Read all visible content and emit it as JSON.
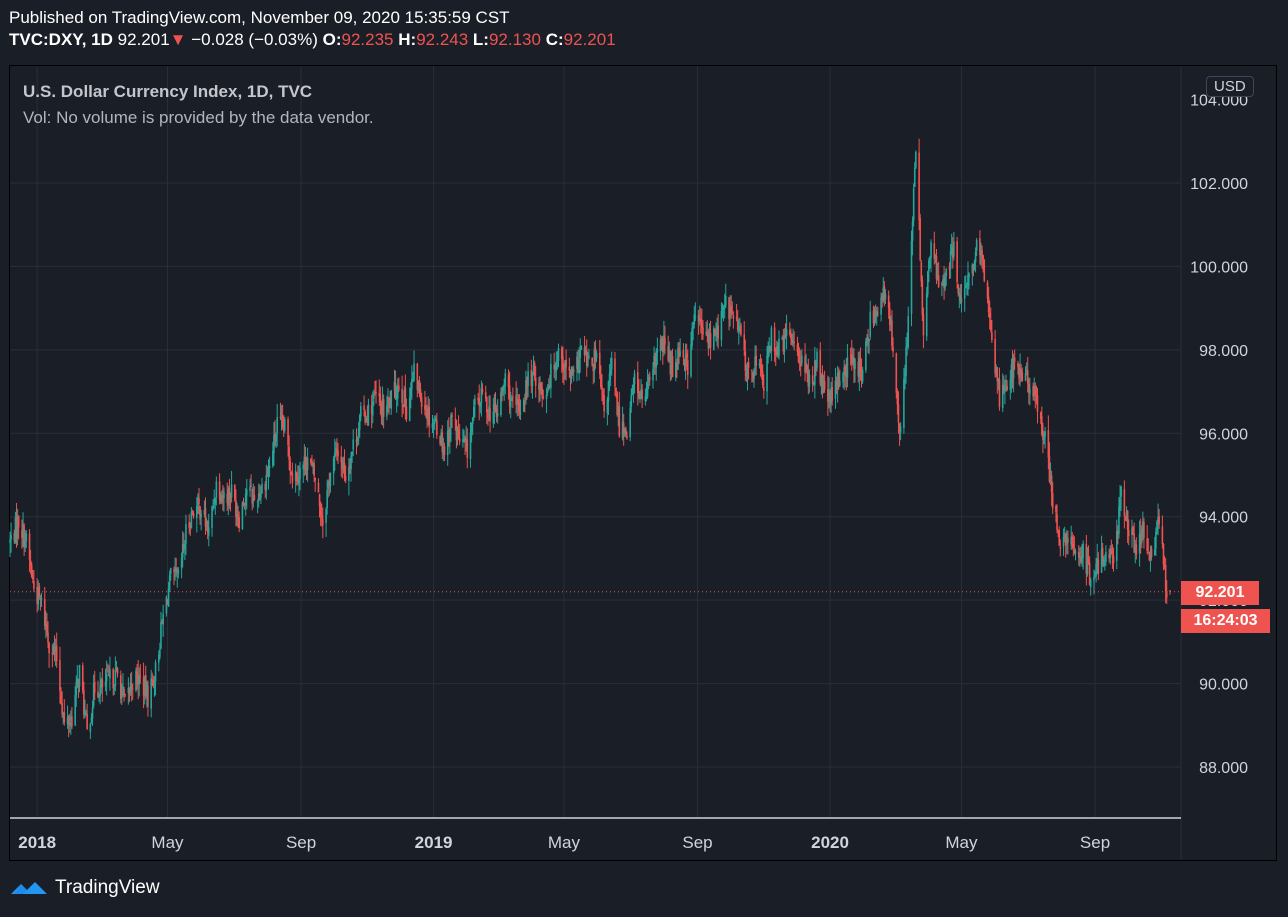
{
  "header": {
    "published": "Published on TradingView.com, November 09, 2020 15:35:59 CST",
    "symbol": "TVC:DXY, 1D",
    "last": "92.201",
    "change": "−0.028 (−0.03%)",
    "o_label": "O:",
    "o_val": "92.235",
    "h_label": "H:",
    "h_val": "92.243",
    "l_label": "L:",
    "l_val": "92.130",
    "c_label": "C:",
    "c_val": "92.201"
  },
  "legend": {
    "title": "U.S. Dollar Currency Index, 1D, TVC",
    "volume_note": "Vol: No volume is provided by the data vendor."
  },
  "currency_button": "USD",
  "price_tag": "92.201",
  "timer_tag": "16:24:03",
  "footer": {
    "brand": "TradingView"
  },
  "colors": {
    "up": "#26a69a",
    "down": "#ef5350",
    "background": "#1a1e27",
    "grid": "#2a2e39",
    "axis_text": "#d1d4dc"
  },
  "chart_data": {
    "type": "candlestick",
    "title": "U.S. Dollar Currency Index, 1D, TVC",
    "ylim": [
      87.0,
      104.0
    ],
    "y_ticks": [
      88,
      90,
      92,
      94,
      96,
      98,
      100,
      102
    ],
    "y_tick_labels": [
      "88.000",
      "90.000",
      "92.000",
      "94.000",
      "96.000",
      "98.000",
      "100.000",
      "102.000"
    ],
    "x_tick_labels": [
      {
        "label": "2018",
        "date": "2018-01-01",
        "bold": true
      },
      {
        "label": "May",
        "date": "2018-05-01",
        "bold": false
      },
      {
        "label": "Sep",
        "date": "2018-09-01",
        "bold": false
      },
      {
        "label": "2019",
        "date": "2019-01-01",
        "bold": true
      },
      {
        "label": "May",
        "date": "2019-05-01",
        "bold": false
      },
      {
        "label": "Sep",
        "date": "2019-09-01",
        "bold": false
      },
      {
        "label": "2020",
        "date": "2020-01-01",
        "bold": true
      },
      {
        "label": "May",
        "date": "2020-05-01",
        "bold": false
      },
      {
        "label": "Sep",
        "date": "2020-09-01",
        "bold": false
      }
    ],
    "x_range": [
      "2017-12-07",
      "2020-11-09"
    ],
    "last_price": 92.201,
    "close_path": [
      [
        "2017-12-07",
        93.4
      ],
      [
        "2017-12-15",
        93.9
      ],
      [
        "2017-12-22",
        93.4
      ],
      [
        "2017-12-29",
        92.3
      ],
      [
        "2018-01-05",
        91.9
      ],
      [
        "2018-01-12",
        91.0
      ],
      [
        "2018-01-19",
        90.6
      ],
      [
        "2018-01-26",
        89.0
      ],
      [
        "2018-02-02",
        89.2
      ],
      [
        "2018-02-09",
        90.3
      ],
      [
        "2018-02-16",
        88.8
      ],
      [
        "2018-02-23",
        89.9
      ],
      [
        "2018-03-02",
        89.9
      ],
      [
        "2018-03-09",
        90.1
      ],
      [
        "2018-03-16",
        90.2
      ],
      [
        "2018-03-23",
        89.5
      ],
      [
        "2018-03-30",
        90.1
      ],
      [
        "2018-04-06",
        90.1
      ],
      [
        "2018-04-13",
        89.7
      ],
      [
        "2018-04-20",
        90.3
      ],
      [
        "2018-04-27",
        91.6
      ],
      [
        "2018-05-04",
        92.5
      ],
      [
        "2018-05-11",
        92.5
      ],
      [
        "2018-05-18",
        93.6
      ],
      [
        "2018-05-25",
        94.2
      ],
      [
        "2018-06-01",
        94.2
      ],
      [
        "2018-06-08",
        93.6
      ],
      [
        "2018-06-15",
        94.8
      ],
      [
        "2018-06-22",
        94.5
      ],
      [
        "2018-06-29",
        94.6
      ],
      [
        "2018-07-06",
        94.0
      ],
      [
        "2018-07-13",
        94.7
      ],
      [
        "2018-07-20",
        94.4
      ],
      [
        "2018-07-27",
        94.7
      ],
      [
        "2018-08-03",
        95.2
      ],
      [
        "2018-08-10",
        96.2
      ],
      [
        "2018-08-17",
        96.1
      ],
      [
        "2018-08-24",
        95.0
      ],
      [
        "2018-08-31",
        95.1
      ],
      [
        "2018-09-07",
        95.4
      ],
      [
        "2018-09-14",
        94.9
      ],
      [
        "2018-09-21",
        93.9
      ],
      [
        "2018-09-28",
        95.1
      ],
      [
        "2018-10-05",
        95.6
      ],
      [
        "2018-10-12",
        95.0
      ],
      [
        "2018-10-19",
        95.7
      ],
      [
        "2018-10-26",
        96.4
      ],
      [
        "2018-11-02",
        96.5
      ],
      [
        "2018-11-09",
        96.9
      ],
      [
        "2018-11-16",
        96.5
      ],
      [
        "2018-11-23",
        96.8
      ],
      [
        "2018-11-30",
        97.2
      ],
      [
        "2018-12-07",
        96.6
      ],
      [
        "2018-12-14",
        97.4
      ],
      [
        "2018-12-21",
        96.9
      ],
      [
        "2018-12-28",
        96.4
      ],
      [
        "2019-01-04",
        96.2
      ],
      [
        "2019-01-11",
        95.6
      ],
      [
        "2019-01-18",
        96.4
      ],
      [
        "2019-01-25",
        95.8
      ],
      [
        "2019-02-01",
        95.6
      ],
      [
        "2019-02-08",
        96.6
      ],
      [
        "2019-02-15",
        96.9
      ],
      [
        "2019-02-22",
        96.5
      ],
      [
        "2019-03-01",
        96.5
      ],
      [
        "2019-03-08",
        97.3
      ],
      [
        "2019-03-15",
        96.6
      ],
      [
        "2019-03-22",
        96.6
      ],
      [
        "2019-03-29",
        97.3
      ],
      [
        "2019-04-05",
        97.4
      ],
      [
        "2019-04-12",
        96.9
      ],
      [
        "2019-04-19",
        97.4
      ],
      [
        "2019-04-26",
        98.0
      ],
      [
        "2019-05-03",
        97.5
      ],
      [
        "2019-05-10",
        97.3
      ],
      [
        "2019-05-17",
        98.0
      ],
      [
        "2019-05-24",
        97.6
      ],
      [
        "2019-05-31",
        97.8
      ],
      [
        "2019-06-07",
        96.5
      ],
      [
        "2019-06-14",
        97.6
      ],
      [
        "2019-06-21",
        96.2
      ],
      [
        "2019-06-28",
        96.1
      ],
      [
        "2019-07-05",
        97.3
      ],
      [
        "2019-07-12",
        96.8
      ],
      [
        "2019-07-19",
        97.1
      ],
      [
        "2019-07-26",
        98.0
      ],
      [
        "2019-08-02",
        98.1
      ],
      [
        "2019-08-09",
        97.5
      ],
      [
        "2019-08-16",
        98.1
      ],
      [
        "2019-08-23",
        97.6
      ],
      [
        "2019-08-30",
        98.9
      ],
      [
        "2019-09-06",
        98.4
      ],
      [
        "2019-09-13",
        98.2
      ],
      [
        "2019-09-20",
        98.5
      ],
      [
        "2019-09-27",
        99.1
      ],
      [
        "2019-10-04",
        98.8
      ],
      [
        "2019-10-11",
        98.3
      ],
      [
        "2019-10-18",
        97.3
      ],
      [
        "2019-10-25",
        97.8
      ],
      [
        "2019-11-01",
        97.2
      ],
      [
        "2019-11-08",
        98.3
      ],
      [
        "2019-11-15",
        98.0
      ],
      [
        "2019-11-22",
        98.3
      ],
      [
        "2019-11-29",
        98.3
      ],
      [
        "2019-12-06",
        97.7
      ],
      [
        "2019-12-13",
        97.2
      ],
      [
        "2019-12-20",
        97.7
      ],
      [
        "2019-12-27",
        96.9
      ],
      [
        "2020-01-03",
        96.8
      ],
      [
        "2020-01-10",
        97.4
      ],
      [
        "2020-01-17",
        97.6
      ],
      [
        "2020-01-24",
        97.8
      ],
      [
        "2020-01-31",
        97.4
      ],
      [
        "2020-02-07",
        98.7
      ],
      [
        "2020-02-14",
        99.1
      ],
      [
        "2020-02-21",
        99.3
      ],
      [
        "2020-02-28",
        98.1
      ],
      [
        "2020-03-06",
        95.9
      ],
      [
        "2020-03-13",
        98.8
      ],
      [
        "2020-03-20",
        102.8
      ],
      [
        "2020-03-27",
        98.4
      ],
      [
        "2020-04-03",
        100.6
      ],
      [
        "2020-04-10",
        99.5
      ],
      [
        "2020-04-17",
        99.8
      ],
      [
        "2020-04-24",
        100.4
      ],
      [
        "2020-05-01",
        99.0
      ],
      [
        "2020-05-08",
        99.7
      ],
      [
        "2020-05-15",
        100.4
      ],
      [
        "2020-05-22",
        99.9
      ],
      [
        "2020-05-29",
        98.3
      ],
      [
        "2020-06-05",
        96.9
      ],
      [
        "2020-06-12",
        97.3
      ],
      [
        "2020-06-19",
        97.6
      ],
      [
        "2020-06-26",
        97.4
      ],
      [
        "2020-07-03",
        97.2
      ],
      [
        "2020-07-10",
        96.6
      ],
      [
        "2020-07-17",
        95.9
      ],
      [
        "2020-07-24",
        94.4
      ],
      [
        "2020-07-31",
        93.3
      ],
      [
        "2020-08-07",
        93.4
      ],
      [
        "2020-08-14",
        93.1
      ],
      [
        "2020-08-21",
        93.2
      ],
      [
        "2020-08-28",
        92.4
      ],
      [
        "2020-09-04",
        92.8
      ],
      [
        "2020-09-11",
        93.3
      ],
      [
        "2020-09-18",
        92.9
      ],
      [
        "2020-09-25",
        94.6
      ],
      [
        "2020-10-02",
        93.8
      ],
      [
        "2020-10-09",
        93.1
      ],
      [
        "2020-10-16",
        93.7
      ],
      [
        "2020-10-23",
        92.8
      ],
      [
        "2020-10-30",
        94.0
      ],
      [
        "2020-11-06",
        92.2
      ],
      [
        "2020-11-09",
        92.201
      ]
    ]
  }
}
